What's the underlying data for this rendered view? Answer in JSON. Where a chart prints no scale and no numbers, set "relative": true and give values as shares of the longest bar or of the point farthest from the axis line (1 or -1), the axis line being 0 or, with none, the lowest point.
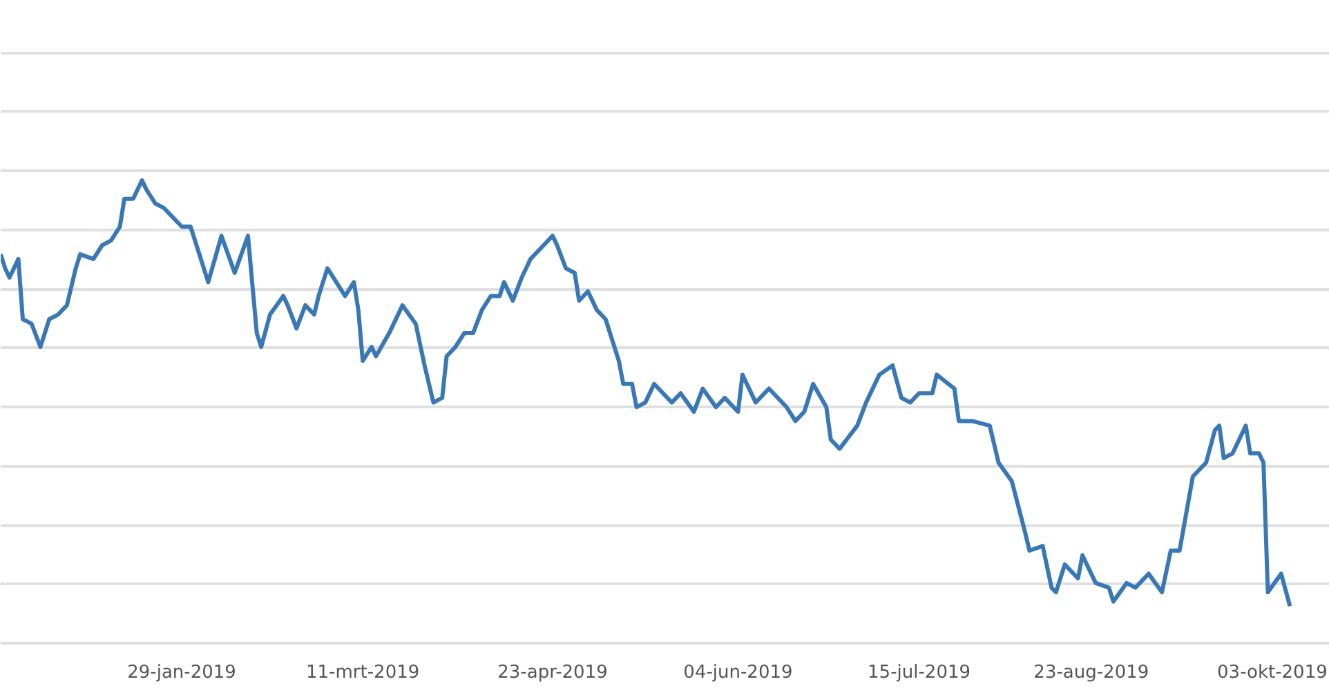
{
  "chart_data": {
    "type": "line",
    "relative": true,
    "grid": "y",
    "color": "#3a78b5",
    "xlim": [
      "2018-12-19",
      "2019-10-16"
    ],
    "xticks": [
      {
        "value": "2019-01-29",
        "label": "29-jan-2019"
      },
      {
        "value": "2019-03-11",
        "label": "11-mrt-2019"
      },
      {
        "value": "2019-04-23",
        "label": "23-apr-2019"
      },
      {
        "value": "2019-06-04",
        "label": "04-jun-2019"
      },
      {
        "value": "2019-07-15",
        "label": "15-jul-2019"
      },
      {
        "value": "2019-08-23",
        "label": "23-aug-2019"
      },
      {
        "value": "2019-10-03",
        "label": "03-okt-2019"
      }
    ],
    "x": [
      "2018-12-19",
      "2018-12-20",
      "2018-12-21",
      "2018-12-23",
      "2018-12-24",
      "2018-12-26",
      "2018-12-28",
      "2018-12-30",
      "2019-01-01",
      "2019-01-03",
      "2019-01-05",
      "2019-01-06",
      "2019-01-09",
      "2019-01-11",
      "2019-01-13",
      "2019-01-15",
      "2019-01-16",
      "2019-01-18",
      "2019-01-20",
      "2019-01-21",
      "2019-01-23",
      "2019-01-25",
      "2019-01-27",
      "2019-01-29",
      "2019-01-31",
      "2019-02-02",
      "2019-02-04",
      "2019-02-07",
      "2019-02-10",
      "2019-02-13",
      "2019-02-15",
      "2019-02-16",
      "2019-02-18",
      "2019-02-21",
      "2019-02-22",
      "2019-02-24",
      "2019-02-26",
      "2019-02-28",
      "2019-03-01",
      "2019-03-03",
      "2019-03-05",
      "2019-03-07",
      "2019-03-09",
      "2019-03-10",
      "2019-03-11",
      "2019-03-13",
      "2019-03-14",
      "2019-03-17",
      "2019-03-20",
      "2019-03-23",
      "2019-03-25",
      "2019-03-27",
      "2019-03-29",
      "2019-03-30",
      "2019-04-01",
      "2019-04-03",
      "2019-04-05",
      "2019-04-07",
      "2019-04-09",
      "2019-04-11",
      "2019-04-12",
      "2019-04-14",
      "2019-04-16",
      "2019-04-18",
      "2019-04-20",
      "2019-04-23",
      "2019-04-24",
      "2019-04-26",
      "2019-04-28",
      "2019-04-29",
      "2019-05-01",
      "2019-05-03",
      "2019-05-05",
      "2019-05-08",
      "2019-05-09",
      "2019-05-11",
      "2019-05-12",
      "2019-05-14",
      "2019-05-16",
      "2019-05-20",
      "2019-05-22",
      "2019-05-25",
      "2019-05-27",
      "2019-05-30",
      "2019-06-01",
      "2019-06-04",
      "2019-06-05",
      "2019-06-08",
      "2019-06-11",
      "2019-06-15",
      "2019-06-17",
      "2019-06-19",
      "2019-06-21",
      "2019-06-24",
      "2019-06-25",
      "2019-06-27",
      "2019-07-01",
      "2019-07-03",
      "2019-07-06",
      "2019-07-09",
      "2019-07-11",
      "2019-07-13",
      "2019-07-15",
      "2019-07-18",
      "2019-07-19",
      "2019-07-23",
      "2019-07-24",
      "2019-07-27",
      "2019-07-31",
      "2019-08-02",
      "2019-08-05",
      "2019-08-08",
      "2019-08-09",
      "2019-08-12",
      "2019-08-14",
      "2019-08-15",
      "2019-08-17",
      "2019-08-20",
      "2019-08-21",
      "2019-08-24",
      "2019-08-27",
      "2019-08-28",
      "2019-08-31",
      "2019-09-02",
      "2019-09-05",
      "2019-09-08",
      "2019-09-10",
      "2019-09-12",
      "2019-09-15",
      "2019-09-18",
      "2019-09-20",
      "2019-09-21",
      "2019-09-22",
      "2019-09-24",
      "2019-09-27",
      "2019-09-28",
      "2019-09-30",
      "2019-10-01",
      "2019-10-02",
      "2019-10-05",
      "2019-10-07"
    ],
    "values": [
      0.84,
      0.81,
      0.79,
      0.83,
      0.7,
      0.69,
      0.64,
      0.7,
      0.71,
      0.73,
      0.81,
      0.84,
      0.83,
      0.86,
      0.87,
      0.9,
      0.96,
      0.96,
      1.0,
      0.98,
      0.95,
      0.94,
      0.92,
      0.9,
      0.9,
      0.84,
      0.78,
      0.88,
      0.8,
      0.88,
      0.67,
      0.64,
      0.71,
      0.75,
      0.73,
      0.68,
      0.73,
      0.71,
      0.75,
      0.81,
      0.78,
      0.75,
      0.78,
      0.72,
      0.61,
      0.64,
      0.62,
      0.67,
      0.73,
      0.69,
      0.6,
      0.52,
      0.53,
      0.62,
      0.64,
      0.67,
      0.67,
      0.72,
      0.75,
      0.75,
      0.78,
      0.74,
      0.79,
      0.83,
      0.85,
      0.88,
      0.86,
      0.81,
      0.8,
      0.74,
      0.76,
      0.72,
      0.7,
      0.61,
      0.56,
      0.56,
      0.51,
      0.52,
      0.56,
      0.52,
      0.54,
      0.5,
      0.55,
      0.51,
      0.53,
      0.5,
      0.58,
      0.52,
      0.55,
      0.51,
      0.48,
      0.5,
      0.56,
      0.51,
      0.44,
      0.42,
      0.47,
      0.52,
      0.58,
      0.6,
      0.53,
      0.52,
      0.54,
      0.54,
      0.58,
      0.55,
      0.48,
      0.48,
      0.47,
      0.39,
      0.35,
      0.24,
      0.2,
      0.21,
      0.12,
      0.11,
      0.17,
      0.14,
      0.19,
      0.13,
      0.12,
      0.09,
      0.13,
      0.12,
      0.15,
      0.11,
      0.2,
      0.2,
      0.36,
      0.39,
      0.46,
      0.47,
      0.4,
      0.41,
      0.47,
      0.41,
      0.41,
      0.39,
      0.11,
      0.15,
      0.08
    ]
  }
}
